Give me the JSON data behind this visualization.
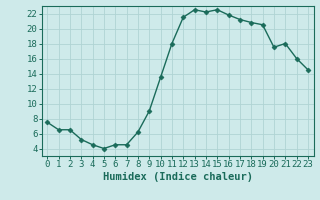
{
  "x": [
    0,
    1,
    2,
    3,
    4,
    5,
    6,
    7,
    8,
    9,
    10,
    11,
    12,
    13,
    14,
    15,
    16,
    17,
    18,
    19,
    20,
    21,
    22,
    23
  ],
  "y": [
    7.5,
    6.5,
    6.5,
    5.2,
    4.5,
    4.0,
    4.5,
    4.5,
    6.2,
    9.0,
    13.5,
    18.0,
    21.5,
    22.5,
    22.2,
    22.5,
    21.8,
    21.2,
    20.8,
    20.5,
    17.5,
    18.0,
    16.0,
    14.5
  ],
  "line_color": "#1a6b5a",
  "marker": "D",
  "marker_size": 2.5,
  "bg_color": "#ceeaea",
  "grid_color": "#b0d4d4",
  "axis_color": "#1a6b5a",
  "xlabel": "Humidex (Indice chaleur)",
  "ylim": [
    3,
    23
  ],
  "xlim": [
    -0.5,
    23.5
  ],
  "yticks": [
    4,
    6,
    8,
    10,
    12,
    14,
    16,
    18,
    20,
    22
  ],
  "xticks": [
    0,
    1,
    2,
    3,
    4,
    5,
    6,
    7,
    8,
    9,
    10,
    11,
    12,
    13,
    14,
    15,
    16,
    17,
    18,
    19,
    20,
    21,
    22,
    23
  ],
  "tick_fontsize": 6.5,
  "xlabel_fontsize": 7.5,
  "label_color": "#1a6b5a",
  "linewidth": 1.0
}
